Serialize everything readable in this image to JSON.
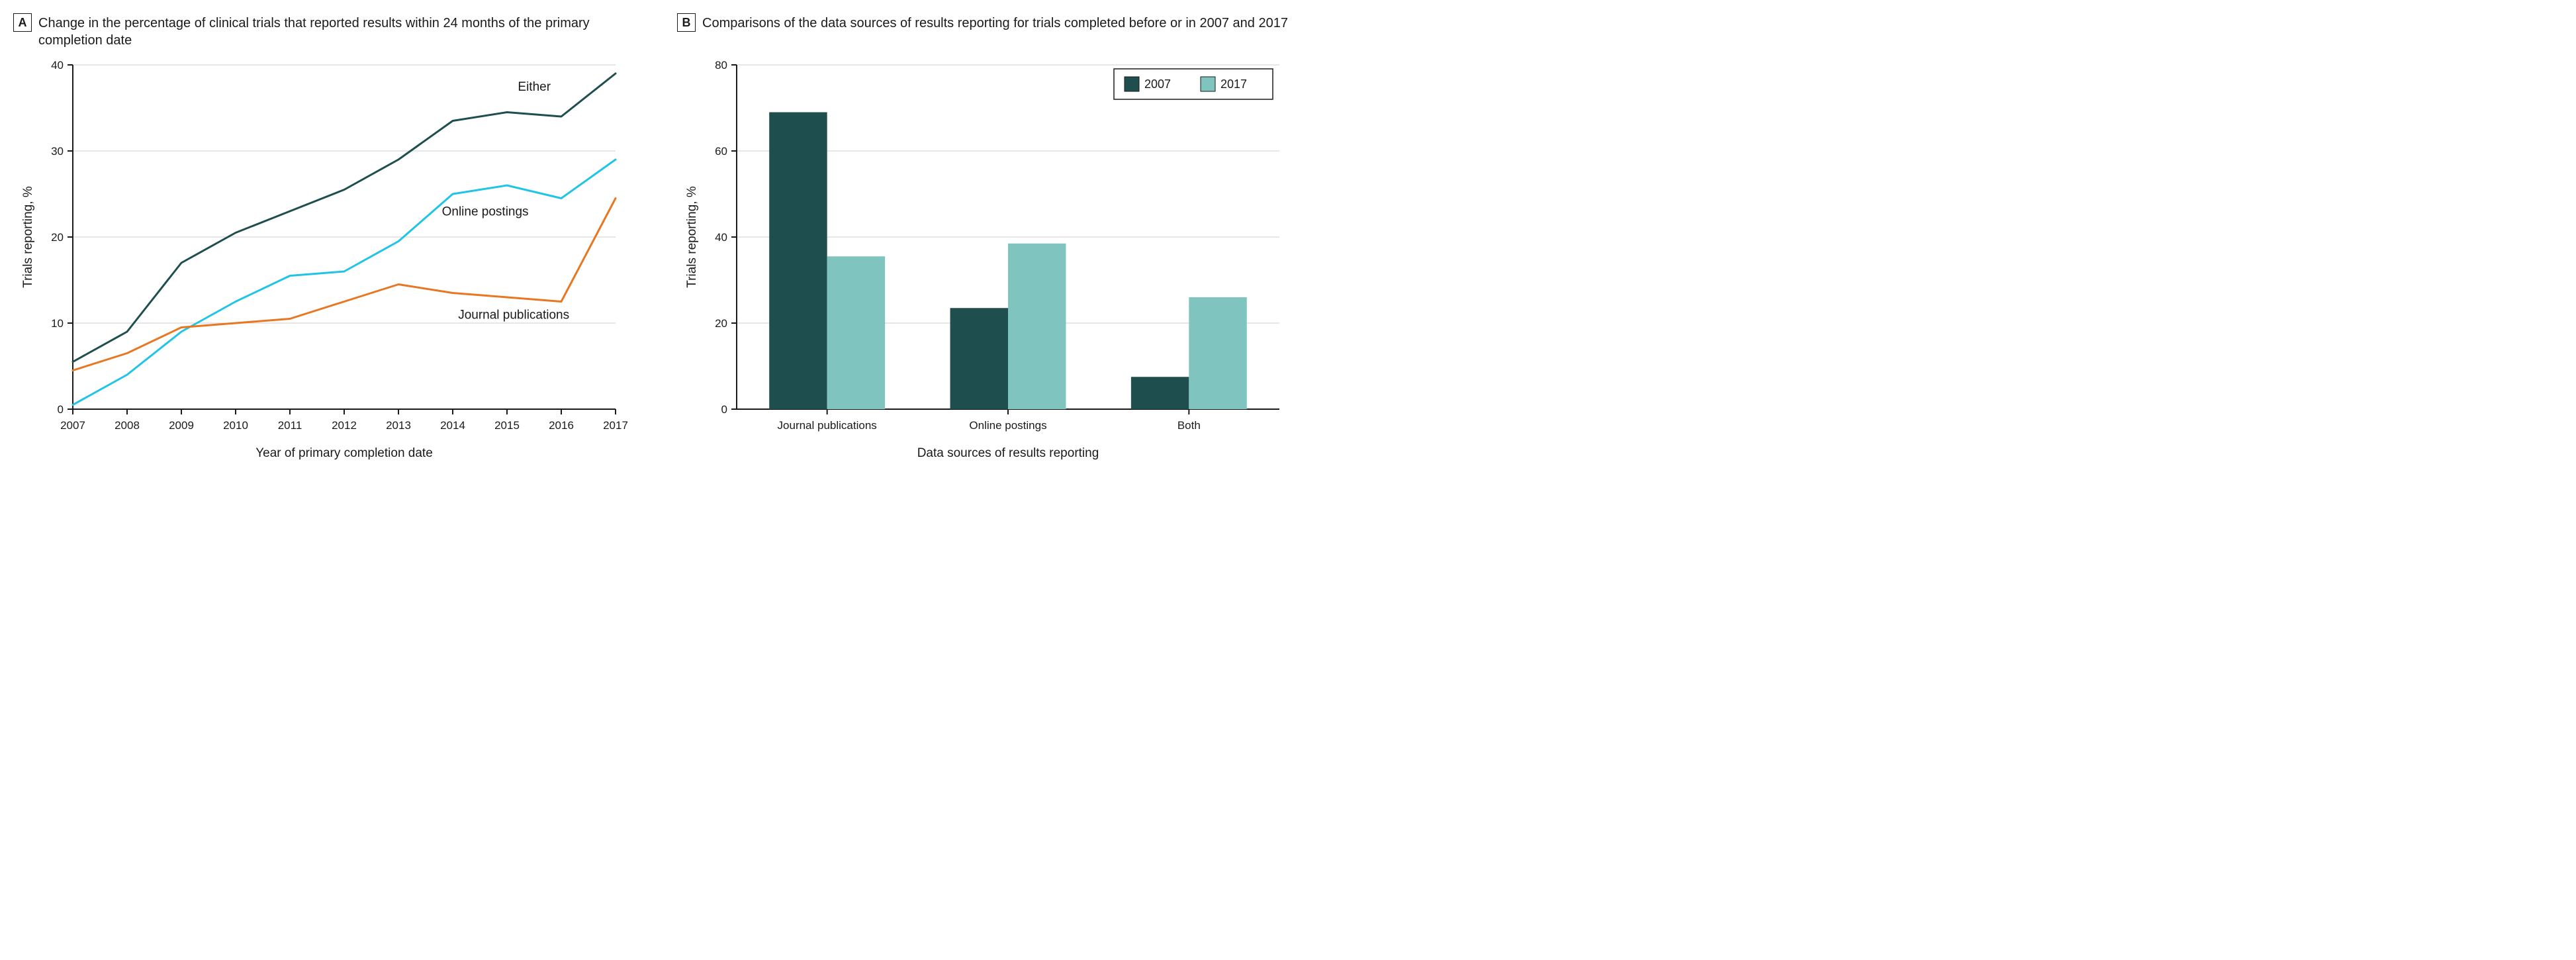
{
  "panelA": {
    "letter": "A",
    "title": "Change in the percentage of clinical trials that reported results within 24 months of the primary completion date",
    "chart": {
      "type": "line",
      "xlabel": "Year of primary completion date",
      "ylabel": "Trials reporting, %",
      "xlim": [
        2007,
        2017
      ],
      "ylim": [
        0,
        40
      ],
      "ytick_step": 10,
      "xtick_step": 1,
      "x_values": [
        2007,
        2008,
        2009,
        2010,
        2011,
        2012,
        2013,
        2014,
        2015,
        2016,
        2017
      ],
      "series": [
        {
          "name": "Either",
          "label": "Either",
          "color": "#1f4e4e",
          "values": [
            5.5,
            9,
            17,
            20.5,
            23,
            25.5,
            29,
            33.5,
            34.5,
            34,
            39
          ],
          "label_x": 2015.2,
          "label_y": 37
        },
        {
          "name": "Online postings",
          "label": "Online postings",
          "color": "#1fc4e6",
          "values": [
            0.5,
            4,
            9,
            12.5,
            15.5,
            16,
            19.5,
            25,
            26,
            24.5,
            29
          ],
          "label_x": 2013.8,
          "label_y": 22.5
        },
        {
          "name": "Journal publications",
          "label": "Journal publications",
          "color": "#e87722",
          "values": [
            4.5,
            6.5,
            9.5,
            10,
            10.5,
            12.5,
            14.5,
            13.5,
            13,
            12.5,
            24.5
          ],
          "label_x": 2014.1,
          "label_y": 10.5
        }
      ],
      "line_width": 3,
      "background_color": "#ffffff",
      "grid_color": "#cfcfcf",
      "label_fontsize": 19,
      "tick_fontsize": 17
    }
  },
  "panelB": {
    "letter": "B",
    "title": "Comparisons of the data sources of results reporting for trials completed before or in 2007 and 2017",
    "chart": {
      "type": "bar",
      "xlabel": "Data sources of results reporting",
      "ylabel": "Trials reporting, %",
      "ylim": [
        0,
        80
      ],
      "ytick_step": 20,
      "categories": [
        "Journal publications",
        "Online postings",
        "Both"
      ],
      "groups": [
        {
          "name": "2007",
          "label": "2007",
          "color": "#1f4e4e",
          "values": [
            69,
            23.5,
            7.5
          ]
        },
        {
          "name": "2017",
          "label": "2017",
          "color": "#7fc4bf",
          "values": [
            35.5,
            38.5,
            26
          ]
        }
      ],
      "bar_width_ratio": 0.32,
      "background_color": "#ffffff",
      "grid_color": "#cfcfcf",
      "label_fontsize": 19,
      "tick_fontsize": 17,
      "legend_position": "top-right"
    }
  }
}
